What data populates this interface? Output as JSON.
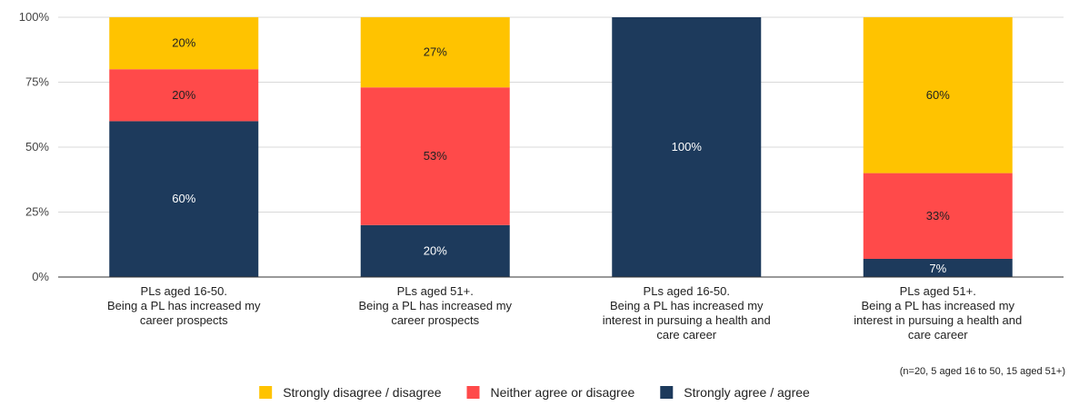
{
  "chart_data": {
    "type": "bar",
    "stacked": true,
    "percent": true,
    "categories": [
      [
        "PLs aged 16-50.",
        "Being a PL has increased my",
        "career prospects"
      ],
      [
        "PLs aged 51+.",
        "Being a PL has increased my",
        "career prospects"
      ],
      [
        "PLs aged 16-50.",
        "Being a PL has increased my",
        "interest in pursuing a health and",
        "care career"
      ],
      [
        "PLs aged 51+.",
        "Being a PL has increased my",
        "interest in pursuing a health and",
        "care career"
      ]
    ],
    "series": [
      {
        "name": "Strongly agree / agree",
        "color": "#1d3a5c",
        "label_color": "#ffffff",
        "values": [
          60,
          20,
          100,
          7
        ]
      },
      {
        "name": "Neither agree or disagree",
        "color": "#ff4a4a",
        "label_color": "#222222",
        "values": [
          20,
          53,
          0,
          33
        ]
      },
      {
        "name": "Strongly disagree / disagree",
        "color": "#ffc300",
        "label_color": "#222222",
        "values": [
          20,
          27,
          0,
          60
        ]
      }
    ],
    "legend_order": [
      "Strongly disagree / disagree",
      "Neither agree or disagree",
      "Strongly agree / agree"
    ],
    "ylim": [
      0,
      100
    ],
    "yticks": [
      0,
      25,
      50,
      75,
      100
    ],
    "ytick_labels": [
      "0%",
      "25%",
      "50%",
      "75%",
      "100%"
    ],
    "title": "",
    "xlabel": "",
    "ylabel": "",
    "grid": true,
    "legend_position": "bottom",
    "note": "(n=20, 5 aged 16 to 50, 15 aged 51+)"
  }
}
